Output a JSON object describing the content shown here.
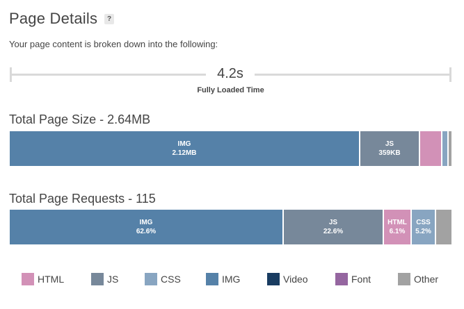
{
  "header": {
    "title": "Page Details",
    "help": "?",
    "subtitle": "Your page content is broken down into the following:"
  },
  "timeline": {
    "time": "4.2s",
    "label": "Fully Loaded Time"
  },
  "page_size": {
    "title": "Total Page Size - 2.64MB",
    "segments": [
      {
        "type": "IMG",
        "value": "2.12MB",
        "color": "#5581a8"
      },
      {
        "type": "JS",
        "value": "359KB",
        "color": "#77889a"
      },
      {
        "type": "HTML",
        "value": "",
        "color": "#d291b7"
      },
      {
        "type": "CSS",
        "value": "",
        "color": "#88a5c1"
      },
      {
        "type": "Other",
        "value": "",
        "color": "#a2a2a2"
      }
    ]
  },
  "page_requests": {
    "title": "Total Page Requests - 115",
    "segments": [
      {
        "type": "IMG",
        "value": "62.6%",
        "color": "#5581a8"
      },
      {
        "type": "JS",
        "value": "22.6%",
        "color": "#77889a"
      },
      {
        "type": "HTML",
        "value": "6.1%",
        "color": "#d291b7"
      },
      {
        "type": "CSS",
        "value": "5.2%",
        "color": "#88a5c1"
      },
      {
        "type": "Other",
        "value": "",
        "color": "#a2a2a2"
      }
    ]
  },
  "legend": [
    {
      "label": "HTML",
      "color": "#d291b7"
    },
    {
      "label": "JS",
      "color": "#77889a"
    },
    {
      "label": "CSS",
      "color": "#88a5c1"
    },
    {
      "label": "IMG",
      "color": "#5581a8"
    },
    {
      "label": "Video",
      "color": "#193c61"
    },
    {
      "label": "Font",
      "color": "#9566a0"
    },
    {
      "label": "Other",
      "color": "#a2a2a2"
    }
  ]
}
